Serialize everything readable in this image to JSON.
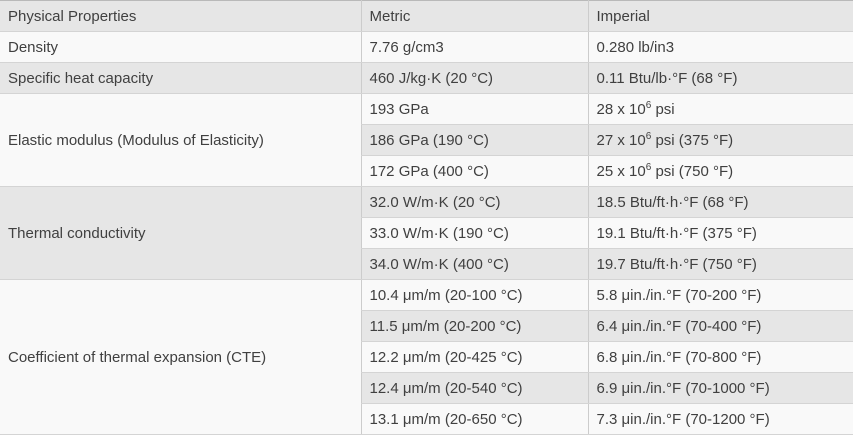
{
  "colors": {
    "row_gray": "#e6e6e6",
    "row_light": "#f9f9f9",
    "border_vertical": "#cccccc",
    "border_horizontal": "#d4d4d4",
    "text": "#404040"
  },
  "table": {
    "columns": [
      {
        "label": "Physical Properties"
      },
      {
        "label": "Metric"
      },
      {
        "label": "Imperial"
      }
    ],
    "groups": [
      {
        "property": "Density",
        "rows": [
          {
            "metric": "7.76 g/cm3",
            "imperial": "0.280 lb/in3"
          }
        ]
      },
      {
        "property": "Specific heat capacity",
        "rows": [
          {
            "metric": "460 J/kg·K (20 °C)",
            "imperial": "0.11 Btu/lb·°F (68 °F)"
          }
        ]
      },
      {
        "property": "Elastic modulus (Modulus of Elasticity)",
        "rows": [
          {
            "metric": "193 GPa",
            "imperial_pre": "28 x 10",
            "imperial_sup": "6",
            "imperial_post": " psi"
          },
          {
            "metric": "186 GPa (190 °C)",
            "imperial_pre": "27 x 10",
            "imperial_sup": "6",
            "imperial_post": " psi (375 °F)"
          },
          {
            "metric": "172 GPa (400 °C)",
            "imperial_pre": "25 x 10",
            "imperial_sup": "6",
            "imperial_post": " psi (750 °F)"
          }
        ]
      },
      {
        "property": "Thermal conductivity",
        "rows": [
          {
            "metric": "32.0 W/m·K (20 °C)",
            "imperial": "18.5 Btu/ft·h·°F (68 °F)"
          },
          {
            "metric": "33.0 W/m·K (190 °C)",
            "imperial": "19.1 Btu/ft·h·°F (375 °F)"
          },
          {
            "metric": "34.0 W/m·K (400 °C)",
            "imperial": "19.7 Btu/ft·h·°F (750 °F)"
          }
        ]
      },
      {
        "property": "Coefficient of thermal expansion (CTE)",
        "rows": [
          {
            "metric": "10.4 μm/m (20-100 °C)",
            "imperial": "5.8 μin./in.°F (70-200 °F)"
          },
          {
            "metric": "11.5 μm/m (20-200 °C)",
            "imperial": "6.4 μin./in.°F (70-400 °F)"
          },
          {
            "metric": "12.2 μm/m (20-425 °C)",
            "imperial": "6.8 μin./in.°F (70-800 °F)"
          },
          {
            "metric": "12.4 μm/m (20-540 °C)",
            "imperial": "6.9 μin./in.°F (70-1000 °F)"
          },
          {
            "metric": "13.1 μm/m (20-650 °C)",
            "imperial": "7.3 μin./in.°F (70-1200 °F)"
          }
        ]
      }
    ]
  }
}
